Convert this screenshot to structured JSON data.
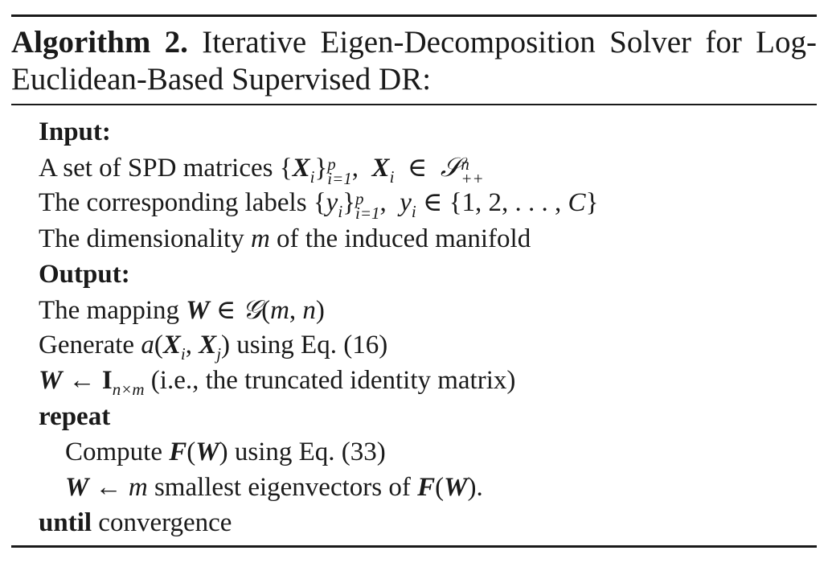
{
  "caption": {
    "label": "Algorithm 2.",
    "title": " Iterative Eigen-Decomposition Solver for Log-Euclidean-Based Supervised DR:"
  },
  "input": {
    "heading": "Input:",
    "line1_text": "A set of SPD matrices",
    "line2_text": "The corresponding labels",
    "line3_a": "The dimensionality",
    "line3_var": "m",
    "line3_b": "of the induced manifold"
  },
  "output": {
    "heading": "Output:",
    "line1_text": "The mapping"
  },
  "steps": {
    "generate_a": "Generate",
    "generate_b": "using Eq. (16)",
    "init_comment": "(i.e., the truncated identity matrix)",
    "repeat": "repeat",
    "compute_a": "Compute",
    "compute_b": "using Eq. (33)",
    "update_text": "smallest eigenvectors of",
    "until": "until",
    "convergence": "convergence"
  }
}
